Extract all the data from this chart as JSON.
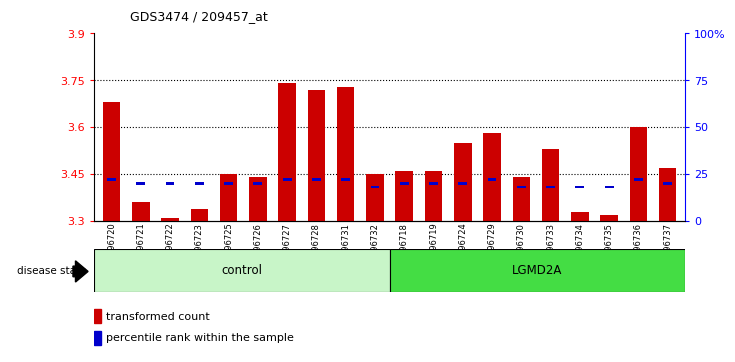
{
  "title": "GDS3474 / 209457_at",
  "samples": [
    "GSM296720",
    "GSM296721",
    "GSM296722",
    "GSM296723",
    "GSM296725",
    "GSM296726",
    "GSM296727",
    "GSM296728",
    "GSM296731",
    "GSM296732",
    "GSM296718",
    "GSM296719",
    "GSM296724",
    "GSM296729",
    "GSM296730",
    "GSM296733",
    "GSM296734",
    "GSM296735",
    "GSM296736",
    "GSM296737"
  ],
  "transformed_count": [
    3.68,
    3.36,
    3.31,
    3.34,
    3.45,
    3.44,
    3.74,
    3.72,
    3.73,
    3.45,
    3.46,
    3.46,
    3.55,
    3.58,
    3.44,
    3.53,
    3.33,
    3.32,
    3.6,
    3.47
  ],
  "percentile_rank": [
    22,
    20,
    20,
    20,
    20,
    20,
    22,
    22,
    22,
    18,
    20,
    20,
    20,
    22,
    18,
    18,
    18,
    18,
    22,
    20
  ],
  "group": [
    "control",
    "control",
    "control",
    "control",
    "control",
    "control",
    "control",
    "control",
    "control",
    "control",
    "lgmd",
    "lgmd",
    "lgmd",
    "lgmd",
    "lgmd",
    "lgmd",
    "lgmd",
    "lgmd",
    "lgmd",
    "lgmd"
  ],
  "ylim_left": [
    3.3,
    3.9
  ],
  "ylim_right": [
    0,
    100
  ],
  "yticks_left": [
    3.3,
    3.45,
    3.6,
    3.75,
    3.9
  ],
  "yticks_right": [
    0,
    25,
    50,
    75,
    100
  ],
  "ytick_labels_right": [
    "0",
    "25",
    "50",
    "75",
    "100%"
  ],
  "bar_color": "#cc0000",
  "percentile_color": "#0000cc",
  "bg_color": "#ffffff",
  "control_color_light": "#c8f0c8",
  "control_color_dark": "#00dd00",
  "lgmd_color": "#00cc00",
  "bar_bottom": 3.3,
  "control_label": "control",
  "lgmd_label": "LGMD2A",
  "disease_state_label": "disease state"
}
